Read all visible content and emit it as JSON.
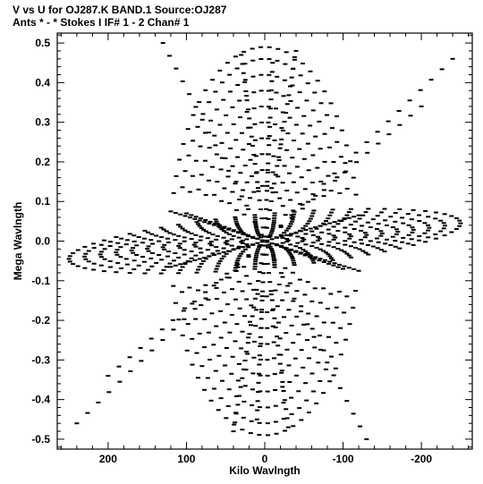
{
  "header": {
    "line1": "V vs U for OJ287.K BAND.1   Source:OJ287",
    "line2": "Ants * - *    Stokes I  IF# 1 - 2  Chan# 1"
  },
  "chart_data": {
    "type": "scatter",
    "xlabel": "Kilo Wavlngth",
    "ylabel": "Mega Wavlngth",
    "xlim": [
      265,
      -265
    ],
    "ylim": [
      -0.525,
      0.525
    ],
    "x_ticks": [
      200,
      100,
      0,
      -100,
      -200
    ],
    "x_tick_labels": [
      "200",
      "100",
      "0",
      "-100",
      "-200"
    ],
    "y_ticks": [
      0.5,
      0.4,
      0.3,
      0.2,
      0.1,
      0.0,
      -0.1,
      -0.2,
      -0.3,
      -0.4,
      -0.5
    ],
    "y_tick_labels": [
      "0.5",
      "0.4",
      "0.3",
      "0.2",
      "0.1",
      "0.0",
      "-0.1",
      "-0.2",
      "-0.3",
      "-0.4",
      "-0.5"
    ],
    "grid": false,
    "color": "#000000",
    "tracks": [
      {
        "kind": "ellipse",
        "a": 250,
        "b": 0.068,
        "tilt": -0.018,
        "n": 62
      },
      {
        "kind": "ellipse",
        "a": 230,
        "b": 0.062,
        "tilt": -0.017,
        "n": 58
      },
      {
        "kind": "ellipse",
        "a": 210,
        "b": 0.056,
        "tilt": -0.016,
        "n": 54
      },
      {
        "kind": "ellipse",
        "a": 190,
        "b": 0.05,
        "tilt": -0.015,
        "n": 50
      },
      {
        "kind": "ellipse",
        "a": 170,
        "b": 0.045,
        "tilt": -0.014,
        "n": 46
      },
      {
        "kind": "ellipse",
        "a": 150,
        "b": 0.04,
        "tilt": -0.013,
        "n": 42
      },
      {
        "kind": "ellipse",
        "a": 130,
        "b": 0.035,
        "tilt": -0.012,
        "n": 38
      },
      {
        "kind": "ellipse",
        "a": 110,
        "b": 0.03,
        "tilt": -0.011,
        "n": 34
      },
      {
        "kind": "ellipse",
        "a": 90,
        "b": 0.025,
        "tilt": -0.01,
        "n": 30
      },
      {
        "kind": "ellipse",
        "a": 70,
        "b": 0.02,
        "tilt": -0.009,
        "n": 26
      },
      {
        "kind": "ellipse",
        "a": 50,
        "b": 0.015,
        "tilt": -0.008,
        "n": 22
      },
      {
        "kind": "ellipse",
        "a": 30,
        "b": 0.01,
        "tilt": -0.007,
        "n": 18
      },
      {
        "kind": "line",
        "u1": 120,
        "v1": 0.075,
        "u2": -120,
        "v2": -0.075,
        "n": 40
      },
      {
        "kind": "line",
        "u1": 100,
        "v1": 0.07,
        "u2": -100,
        "v2": -0.07,
        "n": 34
      },
      {
        "kind": "line",
        "u1": 120,
        "v1": -0.065,
        "u2": -120,
        "v2": 0.065,
        "n": 40
      },
      {
        "kind": "arc",
        "a": 120,
        "b": 0.49,
        "t1": 0.25,
        "t2": 2.9,
        "n": 30
      },
      {
        "kind": "arc",
        "a": 110,
        "b": 0.46,
        "t1": 0.3,
        "t2": 2.85,
        "n": 28
      },
      {
        "kind": "arc",
        "a": 100,
        "b": 0.42,
        "t1": 0.3,
        "t2": 2.85,
        "n": 26
      },
      {
        "kind": "arc",
        "a": 90,
        "b": 0.38,
        "t1": 0.35,
        "t2": 2.8,
        "n": 24
      },
      {
        "kind": "arc",
        "a": 80,
        "b": 0.34,
        "t1": 0.35,
        "t2": 2.8,
        "n": 22
      },
      {
        "kind": "arc",
        "a": 70,
        "b": 0.3,
        "t1": 0.4,
        "t2": 2.75,
        "n": 20
      },
      {
        "kind": "arc",
        "a": 60,
        "b": 0.26,
        "t1": 0.4,
        "t2": 2.75,
        "n": 18
      },
      {
        "kind": "arc",
        "a": 50,
        "b": 0.22,
        "t1": 0.45,
        "t2": 2.7,
        "n": 16
      },
      {
        "kind": "arc",
        "a": 40,
        "b": 0.18,
        "t1": 0.45,
        "t2": 2.7,
        "n": 14
      },
      {
        "kind": "arc",
        "a": 30,
        "b": 0.14,
        "t1": 0.5,
        "t2": 2.65,
        "n": 12
      },
      {
        "kind": "arc",
        "a": 120,
        "b": 0.49,
        "t1": 3.4,
        "t2": 6.05,
        "n": 30
      },
      {
        "kind": "arc",
        "a": 110,
        "b": 0.46,
        "t1": 3.45,
        "t2": 6.0,
        "n": 28
      },
      {
        "kind": "arc",
        "a": 100,
        "b": 0.42,
        "t1": 3.45,
        "t2": 6.0,
        "n": 26
      },
      {
        "kind": "arc",
        "a": 90,
        "b": 0.38,
        "t1": 3.5,
        "t2": 5.95,
        "n": 24
      },
      {
        "kind": "arc",
        "a": 80,
        "b": 0.34,
        "t1": 3.5,
        "t2": 5.95,
        "n": 22
      },
      {
        "kind": "arc",
        "a": 70,
        "b": 0.3,
        "t1": 3.55,
        "t2": 5.9,
        "n": 20
      },
      {
        "kind": "arc",
        "a": 60,
        "b": 0.26,
        "t1": 3.55,
        "t2": 5.9,
        "n": 18
      },
      {
        "kind": "arc",
        "a": 50,
        "b": 0.22,
        "t1": 3.6,
        "t2": 5.85,
        "n": 16
      },
      {
        "kind": "arc",
        "a": 40,
        "b": 0.18,
        "t1": 3.6,
        "t2": 5.85,
        "n": 14
      },
      {
        "kind": "arc",
        "a": 30,
        "b": 0.14,
        "t1": 3.65,
        "t2": 5.8,
        "n": 12
      },
      {
        "kind": "line",
        "u1": 240,
        "v1": -0.46,
        "u2": -240,
        "v2": 0.46,
        "n": 36
      },
      {
        "kind": "line",
        "u1": 200,
        "v1": -0.34,
        "u2": -200,
        "v2": 0.34,
        "n": 30
      },
      {
        "kind": "line",
        "u1": -130,
        "v1": -0.5,
        "u2": 130,
        "v2": 0.5,
        "n": 32
      },
      {
        "kind": "line",
        "u1": 40,
        "v1": -0.48,
        "u2": -40,
        "v2": 0.48,
        "n": 44
      },
      {
        "kind": "line",
        "u1": 10,
        "v1": -0.45,
        "u2": -10,
        "v2": 0.45,
        "n": 40
      },
      {
        "kind": "line",
        "u1": -30,
        "v1": -0.47,
        "u2": 30,
        "v2": 0.47,
        "n": 42
      }
    ]
  }
}
